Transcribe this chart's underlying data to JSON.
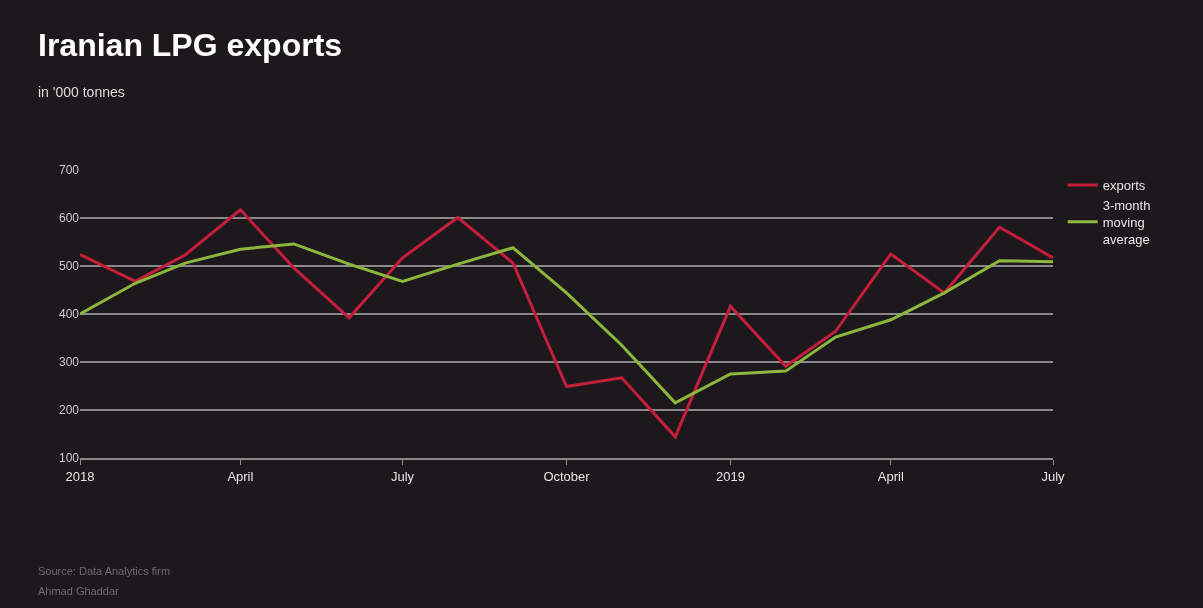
{
  "chart_data": {
    "type": "line",
    "title": "Iranian LPG exports",
    "subtitle": "in '000 tonnes",
    "x": [
      "2018-01",
      "2018-02",
      "2018-03",
      "2018-04",
      "2018-05",
      "2018-06",
      "2018-07",
      "2018-08",
      "2018-09",
      "2018-10",
      "2018-11",
      "2018-12",
      "2019-01",
      "2019-02",
      "2019-03",
      "2019-04",
      "2019-05",
      "2019-06",
      "2019-07"
    ],
    "series": [
      {
        "name": "exports",
        "color": "#c41e3a",
        "values": [
          524,
          468,
          523,
          617,
          496,
          392,
          517,
          601,
          506,
          249,
          267,
          144,
          416,
          291,
          364,
          525,
          444,
          581,
          517
        ]
      },
      {
        "name": "3-month moving average",
        "color": "#8db63c",
        "values": [
          400,
          464,
          506,
          535,
          546,
          504,
          468,
          504,
          538,
          444,
          335,
          215,
          275,
          281,
          352,
          388,
          444,
          511,
          509
        ]
      }
    ],
    "xlim": [
      "2018-01",
      "2019-07"
    ],
    "xticks": [
      {
        "value": "2018-01",
        "label": "2018"
      },
      {
        "value": "2018-04",
        "label": "April"
      },
      {
        "value": "2018-07",
        "label": "July"
      },
      {
        "value": "2018-10",
        "label": "October"
      },
      {
        "value": "2019-01",
        "label": "2019"
      },
      {
        "value": "2019-04",
        "label": "April"
      },
      {
        "value": "2019-07",
        "label": "July"
      }
    ],
    "ylim": [
      100,
      700
    ],
    "yticks": [
      100,
      200,
      300,
      400,
      500,
      600,
      700
    ],
    "grid": "y",
    "legend": "top right",
    "marker": "none",
    "line_style": "solid",
    "annotations": [
      "Source: Data Analytics firm",
      "Ahmad Ghaddar"
    ]
  }
}
